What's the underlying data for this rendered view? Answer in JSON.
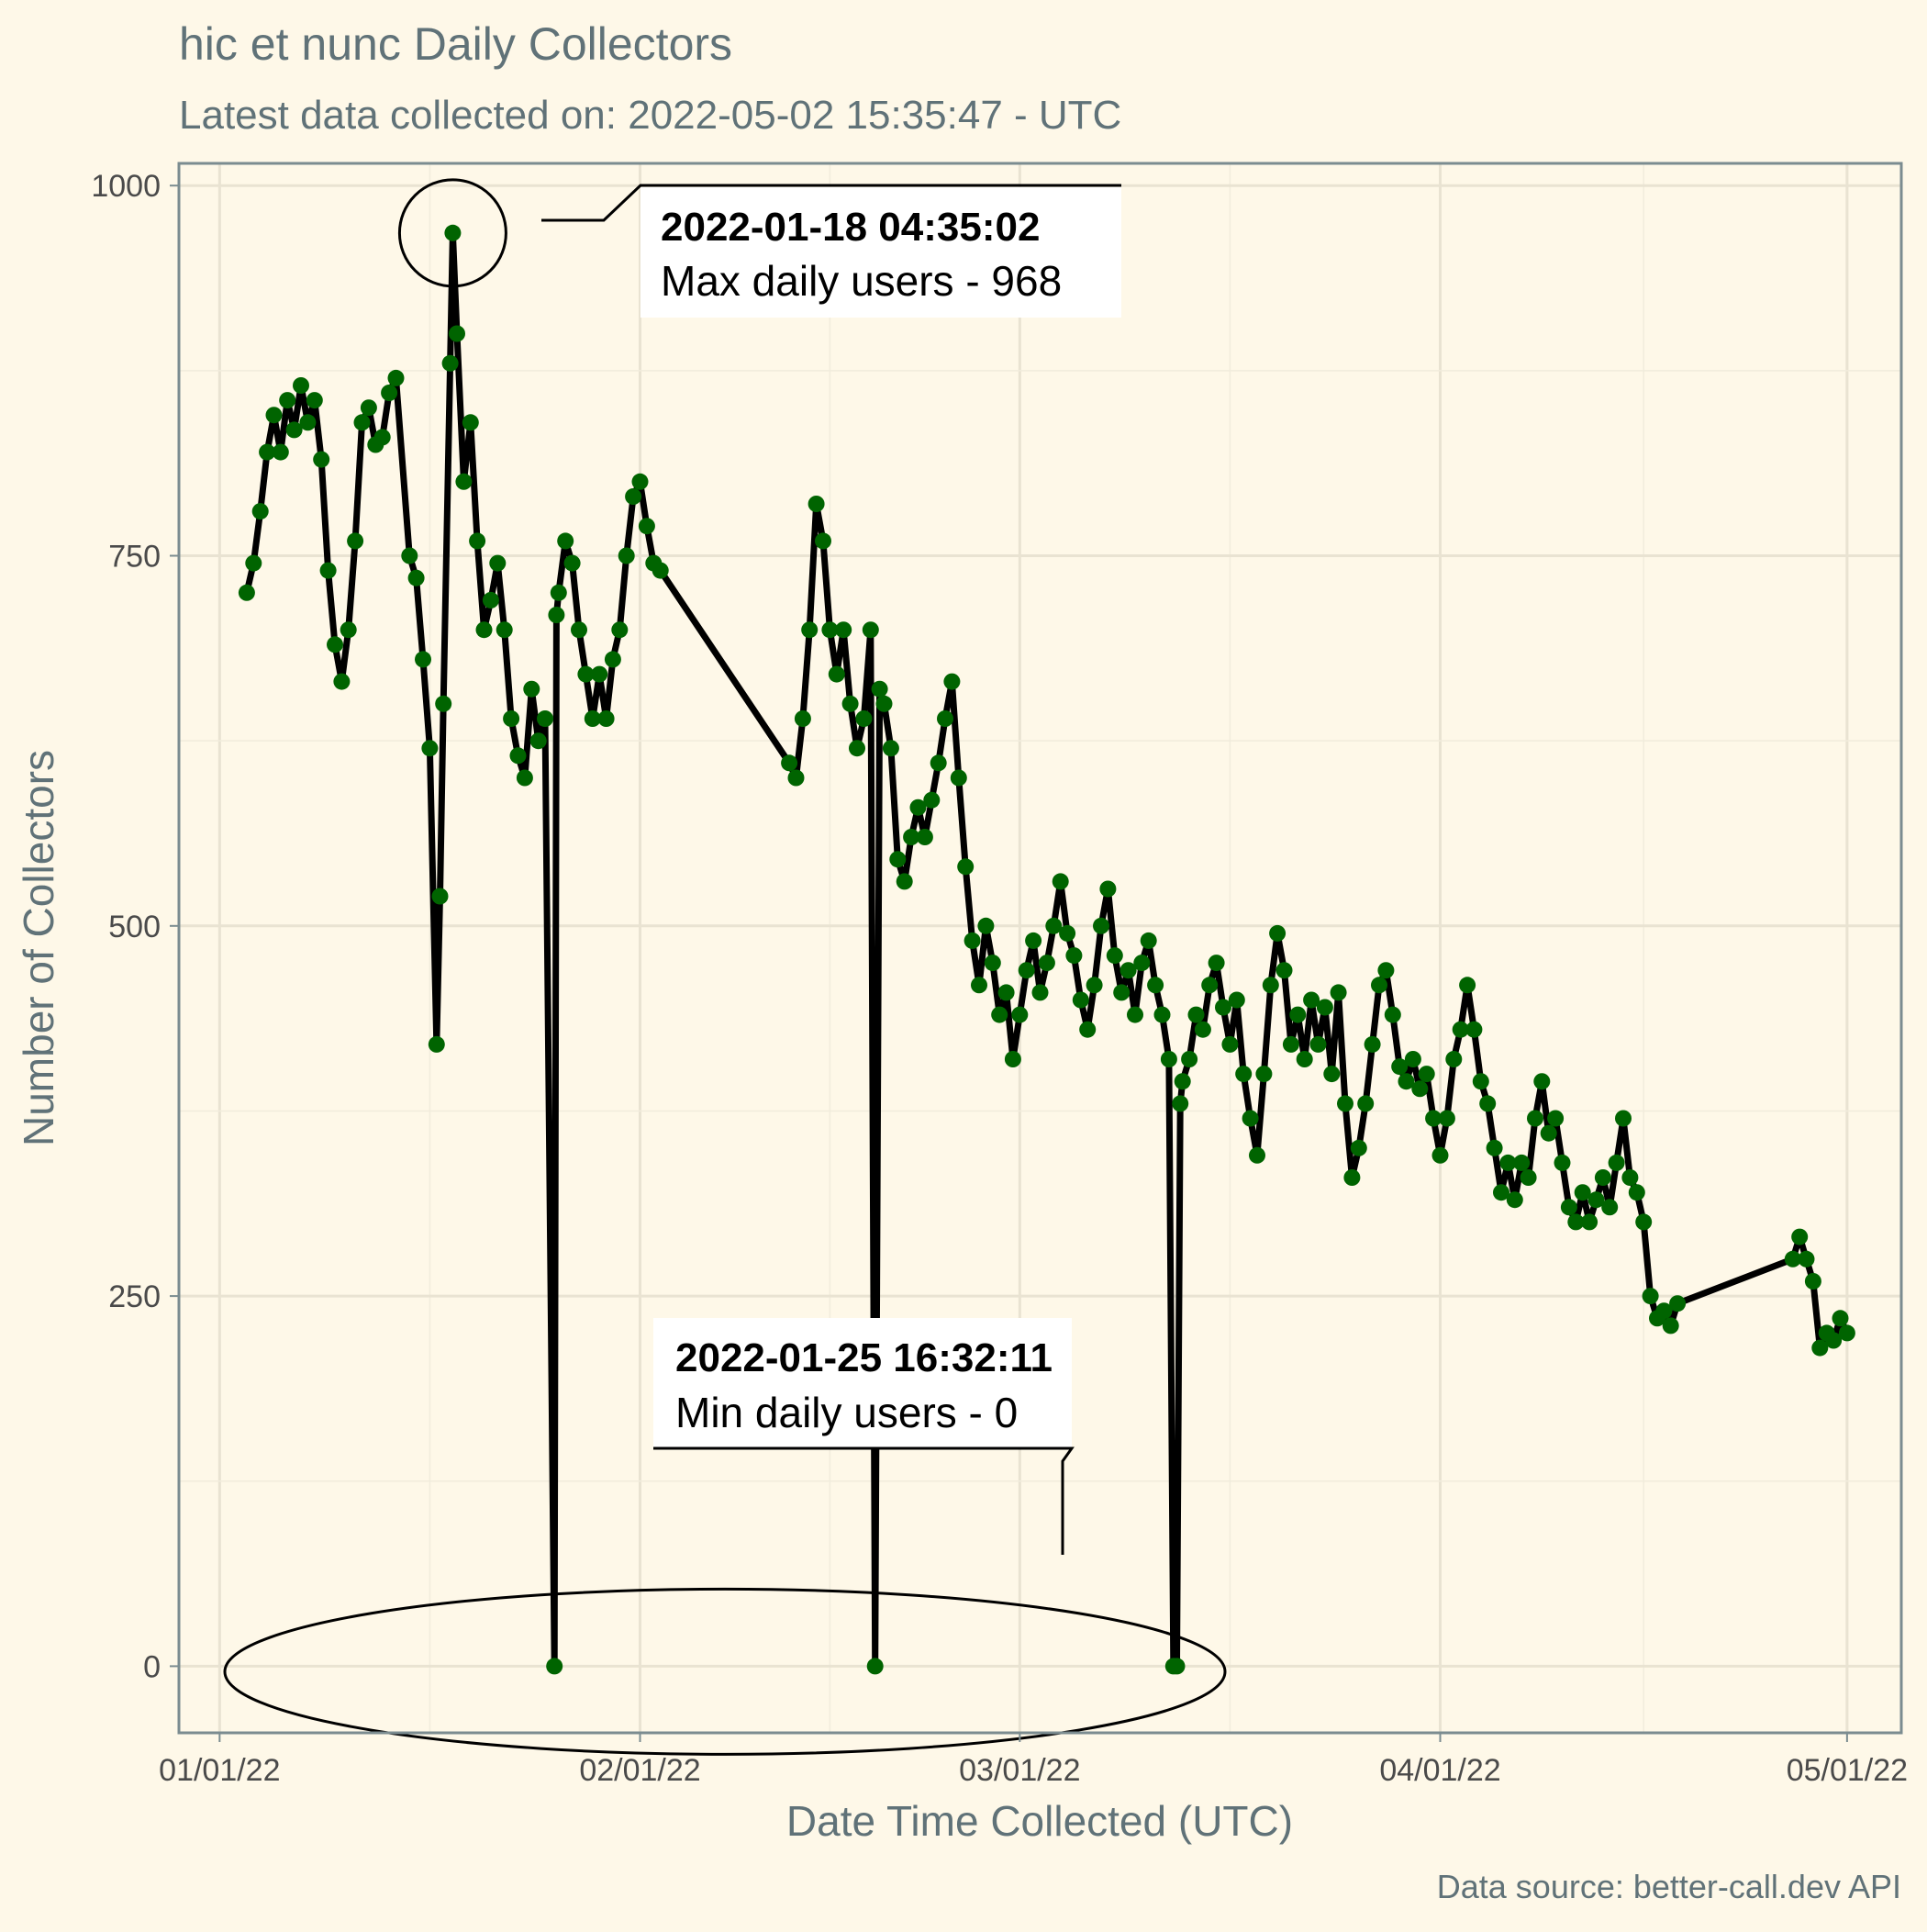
{
  "chart_data": {
    "type": "line",
    "title": "hic et nunc Daily Collectors",
    "subtitle": "Latest data collected on: 2022-05-02 15:35:47  - UTC",
    "xlabel": "Date Time Collected (UTC)",
    "ylabel": "Number of Collectors",
    "caption": "Data source: better-call.dev API",
    "xlim": [
      "2021-12-29",
      "2022-05-05"
    ],
    "ylim": [
      -45,
      1015
    ],
    "x_ticks": [
      {
        "date": "2022-01-01",
        "label": "01/01/22"
      },
      {
        "date": "2022-02-01",
        "label": "02/01/22"
      },
      {
        "date": "2022-03-01",
        "label": "03/01/22"
      },
      {
        "date": "2022-04-01",
        "label": "04/01/22"
      },
      {
        "date": "2022-05-01",
        "label": "05/01/22"
      }
    ],
    "y_ticks": [
      0,
      250,
      500,
      750,
      1000
    ],
    "grid": true,
    "series": [
      {
        "color": "#006400",
        "line_color": "#000000",
        "points": [
          [
            "2022-01-03 00:00",
            725
          ],
          [
            "2022-01-03 12:00",
            745
          ],
          [
            "2022-01-04 00:00",
            780
          ],
          [
            "2022-01-04 12:00",
            820
          ],
          [
            "2022-01-05 00:00",
            845
          ],
          [
            "2022-01-05 12:00",
            820
          ],
          [
            "2022-01-06 00:00",
            855
          ],
          [
            "2022-01-06 12:00",
            835
          ],
          [
            "2022-01-07 00:00",
            865
          ],
          [
            "2022-01-07 12:00",
            840
          ],
          [
            "2022-01-08 00:00",
            855
          ],
          [
            "2022-01-08 12:00",
            815
          ],
          [
            "2022-01-09 00:00",
            740
          ],
          [
            "2022-01-09 12:00",
            690
          ],
          [
            "2022-01-10 00:00",
            665
          ],
          [
            "2022-01-10 12:00",
            700
          ],
          [
            "2022-01-11 00:00",
            760
          ],
          [
            "2022-01-11 12:00",
            840
          ],
          [
            "2022-01-12 00:00",
            850
          ],
          [
            "2022-01-12 12:00",
            825
          ],
          [
            "2022-01-13 00:00",
            830
          ],
          [
            "2022-01-13 12:00",
            860
          ],
          [
            "2022-01-14 00:00",
            870
          ],
          [
            "2022-01-15 00:00",
            750
          ],
          [
            "2022-01-15 12:00",
            735
          ],
          [
            "2022-01-16 00:00",
            680
          ],
          [
            "2022-01-16 12:00",
            620
          ],
          [
            "2022-01-17 00:00",
            420
          ],
          [
            "2022-01-17 06:00",
            520
          ],
          [
            "2022-01-17 12:00",
            650
          ],
          [
            "2022-01-18 00:00",
            880
          ],
          [
            "2022-01-18 04:35",
            968
          ],
          [
            "2022-01-18 12:00",
            900
          ],
          [
            "2022-01-19 00:00",
            800
          ],
          [
            "2022-01-19 12:00",
            840
          ],
          [
            "2022-01-20 00:00",
            760
          ],
          [
            "2022-01-20 12:00",
            700
          ],
          [
            "2022-01-21 00:00",
            720
          ],
          [
            "2022-01-21 12:00",
            745
          ],
          [
            "2022-01-22 00:00",
            700
          ],
          [
            "2022-01-22 12:00",
            640
          ],
          [
            "2022-01-23 00:00",
            615
          ],
          [
            "2022-01-23 12:00",
            600
          ],
          [
            "2022-01-24 00:00",
            660
          ],
          [
            "2022-01-24 12:00",
            625
          ],
          [
            "2022-01-25 00:00",
            640
          ],
          [
            "2022-01-25 16:32",
            0
          ],
          [
            "2022-01-25 20:00",
            710
          ],
          [
            "2022-01-26 00:00",
            725
          ],
          [
            "2022-01-26 12:00",
            760
          ],
          [
            "2022-01-27 00:00",
            745
          ],
          [
            "2022-01-27 12:00",
            700
          ],
          [
            "2022-01-28 00:00",
            670
          ],
          [
            "2022-01-28 12:00",
            640
          ],
          [
            "2022-01-29 00:00",
            670
          ],
          [
            "2022-01-29 12:00",
            640
          ],
          [
            "2022-01-30 00:00",
            680
          ],
          [
            "2022-01-30 12:00",
            700
          ],
          [
            "2022-01-31 00:00",
            750
          ],
          [
            "2022-01-31 12:00",
            790
          ],
          [
            "2022-02-01 00:00",
            800
          ],
          [
            "2022-02-01 12:00",
            770
          ],
          [
            "2022-02-02 00:00",
            745
          ],
          [
            "2022-02-02 12:00",
            740
          ],
          [
            "2022-02-12 00:00",
            610
          ],
          [
            "2022-02-12 12:00",
            600
          ],
          [
            "2022-02-13 00:00",
            640
          ],
          [
            "2022-02-13 12:00",
            700
          ],
          [
            "2022-02-14 00:00",
            785
          ],
          [
            "2022-02-14 12:00",
            760
          ],
          [
            "2022-02-15 00:00",
            700
          ],
          [
            "2022-02-15 12:00",
            670
          ],
          [
            "2022-02-16 00:00",
            700
          ],
          [
            "2022-02-16 12:00",
            650
          ],
          [
            "2022-02-17 00:00",
            620
          ],
          [
            "2022-02-17 12:00",
            640
          ],
          [
            "2022-02-18 00:00",
            700
          ],
          [
            "2022-02-18 08:00",
            0
          ],
          [
            "2022-02-18 16:00",
            660
          ],
          [
            "2022-02-19 00:00",
            650
          ],
          [
            "2022-02-19 12:00",
            620
          ],
          [
            "2022-02-20 00:00",
            545
          ],
          [
            "2022-02-20 12:00",
            530
          ],
          [
            "2022-02-21 00:00",
            560
          ],
          [
            "2022-02-21 12:00",
            580
          ],
          [
            "2022-02-22 00:00",
            560
          ],
          [
            "2022-02-22 12:00",
            585
          ],
          [
            "2022-02-23 00:00",
            610
          ],
          [
            "2022-02-23 12:00",
            640
          ],
          [
            "2022-02-24 00:00",
            665
          ],
          [
            "2022-02-24 12:00",
            600
          ],
          [
            "2022-02-25 00:00",
            540
          ],
          [
            "2022-02-25 12:00",
            490
          ],
          [
            "2022-02-26 00:00",
            460
          ],
          [
            "2022-02-26 12:00",
            500
          ],
          [
            "2022-02-27 00:00",
            475
          ],
          [
            "2022-02-27 12:00",
            440
          ],
          [
            "2022-02-28 00:00",
            455
          ],
          [
            "2022-02-28 12:00",
            410
          ],
          [
            "2022-03-01 00:00",
            440
          ],
          [
            "2022-03-01 12:00",
            470
          ],
          [
            "2022-03-02 00:00",
            490
          ],
          [
            "2022-03-02 12:00",
            455
          ],
          [
            "2022-03-03 00:00",
            475
          ],
          [
            "2022-03-03 12:00",
            500
          ],
          [
            "2022-03-04 00:00",
            530
          ],
          [
            "2022-03-04 12:00",
            495
          ],
          [
            "2022-03-05 00:00",
            480
          ],
          [
            "2022-03-05 12:00",
            450
          ],
          [
            "2022-03-06 00:00",
            430
          ],
          [
            "2022-03-06 12:00",
            460
          ],
          [
            "2022-03-07 00:00",
            500
          ],
          [
            "2022-03-07 12:00",
            525
          ],
          [
            "2022-03-08 00:00",
            480
          ],
          [
            "2022-03-08 12:00",
            455
          ],
          [
            "2022-03-09 00:00",
            470
          ],
          [
            "2022-03-09 12:00",
            440
          ],
          [
            "2022-03-10 00:00",
            475
          ],
          [
            "2022-03-10 12:00",
            490
          ],
          [
            "2022-03-11 00:00",
            460
          ],
          [
            "2022-03-11 12:00",
            440
          ],
          [
            "2022-03-12 00:00",
            410
          ],
          [
            "2022-03-12 08:00",
            0
          ],
          [
            "2022-03-12 14:00",
            0
          ],
          [
            "2022-03-12 20:00",
            380
          ],
          [
            "2022-03-13 00:00",
            395
          ],
          [
            "2022-03-13 12:00",
            410
          ],
          [
            "2022-03-14 00:00",
            440
          ],
          [
            "2022-03-14 12:00",
            430
          ],
          [
            "2022-03-15 00:00",
            460
          ],
          [
            "2022-03-15 12:00",
            475
          ],
          [
            "2022-03-16 00:00",
            445
          ],
          [
            "2022-03-16 12:00",
            420
          ],
          [
            "2022-03-17 00:00",
            450
          ],
          [
            "2022-03-17 12:00",
            400
          ],
          [
            "2022-03-18 00:00",
            370
          ],
          [
            "2022-03-18 12:00",
            345
          ],
          [
            "2022-03-19 00:00",
            400
          ],
          [
            "2022-03-19 12:00",
            460
          ],
          [
            "2022-03-20 00:00",
            495
          ],
          [
            "2022-03-20 12:00",
            470
          ],
          [
            "2022-03-21 00:00",
            420
          ],
          [
            "2022-03-21 12:00",
            440
          ],
          [
            "2022-03-22 00:00",
            410
          ],
          [
            "2022-03-22 12:00",
            450
          ],
          [
            "2022-03-23 00:00",
            420
          ],
          [
            "2022-03-23 12:00",
            445
          ],
          [
            "2022-03-24 00:00",
            400
          ],
          [
            "2022-03-24 12:00",
            455
          ],
          [
            "2022-03-25 00:00",
            380
          ],
          [
            "2022-03-25 12:00",
            330
          ],
          [
            "2022-03-26 00:00",
            350
          ],
          [
            "2022-03-26 12:00",
            380
          ],
          [
            "2022-03-27 00:00",
            420
          ],
          [
            "2022-03-27 12:00",
            460
          ],
          [
            "2022-03-28 00:00",
            470
          ],
          [
            "2022-03-28 12:00",
            440
          ],
          [
            "2022-03-29 00:00",
            405
          ],
          [
            "2022-03-29 12:00",
            395
          ],
          [
            "2022-03-30 00:00",
            410
          ],
          [
            "2022-03-30 12:00",
            390
          ],
          [
            "2022-03-31 00:00",
            400
          ],
          [
            "2022-03-31 12:00",
            370
          ],
          [
            "2022-04-01 00:00",
            345
          ],
          [
            "2022-04-01 12:00",
            370
          ],
          [
            "2022-04-02 00:00",
            410
          ],
          [
            "2022-04-02 12:00",
            430
          ],
          [
            "2022-04-03 00:00",
            460
          ],
          [
            "2022-04-03 12:00",
            430
          ],
          [
            "2022-04-04 00:00",
            395
          ],
          [
            "2022-04-04 12:00",
            380
          ],
          [
            "2022-04-05 00:00",
            350
          ],
          [
            "2022-04-05 12:00",
            320
          ],
          [
            "2022-04-06 00:00",
            340
          ],
          [
            "2022-04-06 12:00",
            315
          ],
          [
            "2022-04-07 00:00",
            340
          ],
          [
            "2022-04-07 12:00",
            330
          ],
          [
            "2022-04-08 00:00",
            370
          ],
          [
            "2022-04-08 12:00",
            395
          ],
          [
            "2022-04-09 00:00",
            360
          ],
          [
            "2022-04-09 12:00",
            370
          ],
          [
            "2022-04-10 00:00",
            340
          ],
          [
            "2022-04-10 12:00",
            310
          ],
          [
            "2022-04-11 00:00",
            300
          ],
          [
            "2022-04-11 12:00",
            320
          ],
          [
            "2022-04-12 00:00",
            300
          ],
          [
            "2022-04-12 12:00",
            315
          ],
          [
            "2022-04-13 00:00",
            330
          ],
          [
            "2022-04-13 12:00",
            310
          ],
          [
            "2022-04-14 00:00",
            340
          ],
          [
            "2022-04-14 12:00",
            370
          ],
          [
            "2022-04-15 00:00",
            330
          ],
          [
            "2022-04-15 12:00",
            320
          ],
          [
            "2022-04-16 00:00",
            300
          ],
          [
            "2022-04-16 12:00",
            250
          ],
          [
            "2022-04-17 00:00",
            235
          ],
          [
            "2022-04-17 12:00",
            240
          ],
          [
            "2022-04-18 00:00",
            230
          ],
          [
            "2022-04-18 12:00",
            245
          ],
          [
            "2022-04-27 00:00",
            275
          ],
          [
            "2022-04-27 12:00",
            290
          ],
          [
            "2022-04-28 00:00",
            275
          ],
          [
            "2022-04-28 12:00",
            260
          ],
          [
            "2022-04-29 00:00",
            215
          ],
          [
            "2022-04-29 12:00",
            225
          ],
          [
            "2022-04-30 00:00",
            220
          ],
          [
            "2022-04-30 12:00",
            235
          ],
          [
            "2022-05-01 00:00",
            225
          ]
        ]
      }
    ],
    "annotations": [
      {
        "line1": "2022-01-18 04:35:02",
        "line2": "Max daily users - 968",
        "x": "2022-01-18 04:35",
        "y": 968
      },
      {
        "line1": "2022-01-25 16:32:11",
        "line2": "Min daily users - 0",
        "x": "2022-01-25 16:32",
        "y": 0
      }
    ]
  }
}
